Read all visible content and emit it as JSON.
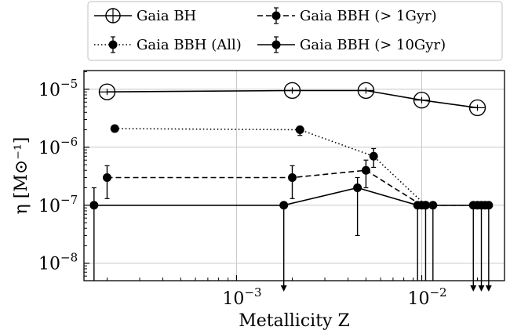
{
  "chart_data": {
    "type": "line",
    "xlabel": "Metallicity Z",
    "ylabel": "η [M⊙⁻¹]",
    "xscale": "log",
    "yscale": "log",
    "xlim": [
      0.00015,
      0.028
    ],
    "ylim": [
      5e-09,
      2.1e-05
    ],
    "x_ticks": [
      {
        "value": 0.001,
        "base": "10",
        "exp": "−3"
      },
      {
        "value": 0.01,
        "base": "10",
        "exp": "−2"
      }
    ],
    "y_ticks": [
      {
        "value": 1e-08,
        "base": "10",
        "exp": "−8"
      },
      {
        "value": 1e-07,
        "base": "10",
        "exp": "−7"
      },
      {
        "value": 1e-06,
        "base": "10",
        "exp": "−6"
      },
      {
        "value": 1e-05,
        "base": "10",
        "exp": "−5"
      }
    ],
    "grid": true,
    "legend_position": "top, above plot",
    "series": [
      {
        "name": "Gaia BH",
        "style": "solid",
        "marker": "open-circle",
        "points": [
          {
            "x": 0.0002,
            "y": 9e-06,
            "err_lo": 0,
            "err_hi": 0,
            "upper_limit": false
          },
          {
            "x": 0.002,
            "y": 9.5e-06,
            "err_lo": 0,
            "err_hi": 0,
            "upper_limit": false
          },
          {
            "x": 0.005,
            "y": 9.5e-06,
            "err_lo": 0,
            "err_hi": 0,
            "upper_limit": false
          },
          {
            "x": 0.01,
            "y": 6.5e-06,
            "err_lo": 0,
            "err_hi": 0,
            "upper_limit": false
          },
          {
            "x": 0.02,
            "y": 4.8e-06,
            "err_lo": 0,
            "err_hi": 0,
            "upper_limit": false
          }
        ]
      },
      {
        "name": "Gaia BBH (All)",
        "style": "dotted",
        "marker": "filled-circle",
        "points": [
          {
            "x": 0.00022,
            "y": 2.1e-06,
            "err_lo": 2e-07,
            "err_hi": 2e-07,
            "upper_limit": false
          },
          {
            "x": 0.0022,
            "y": 2e-06,
            "err_lo": 4e-07,
            "err_hi": 3e-07,
            "upper_limit": false
          },
          {
            "x": 0.0055,
            "y": 7e-07,
            "err_lo": 2.5e-07,
            "err_hi": 2.5e-07,
            "upper_limit": false
          },
          {
            "x": 0.0105,
            "y": 1e-07,
            "err_lo": 0,
            "err_hi": 0,
            "upper_limit": false
          },
          {
            "x": 0.022,
            "y": 1e-07,
            "err_lo": 0,
            "err_hi": 0,
            "upper_limit": false
          }
        ]
      },
      {
        "name": "Gaia BBH (> 1Gyr)",
        "style": "dashed",
        "marker": "filled-circle",
        "points": [
          {
            "x": 0.0002,
            "y": 3e-07,
            "err_lo": 1.7e-07,
            "err_hi": 1.8e-07,
            "upper_limit": false
          },
          {
            "x": 0.002,
            "y": 3e-07,
            "err_lo": 1.7e-07,
            "err_hi": 1.8e-07,
            "upper_limit": false
          },
          {
            "x": 0.005,
            "y": 4e-07,
            "err_lo": 2e-07,
            "err_hi": 2e-07,
            "upper_limit": false
          },
          {
            "x": 0.01,
            "y": 1e-07,
            "err_lo": 0,
            "err_hi": 0,
            "upper_limit": false
          },
          {
            "x": 0.02,
            "y": 1e-07,
            "err_lo": 0,
            "err_hi": 0,
            "upper_limit": false
          }
        ]
      },
      {
        "name": "Gaia BBH (> 10Gyr)",
        "style": "solid",
        "marker": "filled-circle",
        "points": [
          {
            "x": 0.00017,
            "y": 1e-07,
            "err_lo": 9.5e-09,
            "err_hi": 1e-07,
            "upper_limit": false,
            "err_to_bottom": true
          },
          {
            "x": 0.0018,
            "y": 1e-07,
            "err_lo": 0,
            "err_hi": 0,
            "upper_limit": true
          },
          {
            "x": 0.0045,
            "y": 2e-07,
            "err_lo": 1.7e-07,
            "err_hi": 1e-07,
            "upper_limit": false
          },
          {
            "x": 0.0095,
            "y": 1e-07,
            "err_lo": 0,
            "err_hi": 1e-08,
            "upper_limit": false,
            "err_to_bottom": true
          },
          {
            "x": 0.0105,
            "y": 1e-07,
            "err_lo": 0,
            "err_hi": 1e-08,
            "upper_limit": false,
            "err_to_bottom": true
          },
          {
            "x": 0.0115,
            "y": 1e-07,
            "err_lo": 0,
            "err_hi": 1e-08,
            "upper_limit": false,
            "err_to_bottom": true
          },
          {
            "x": 0.019,
            "y": 1e-07,
            "err_lo": 0,
            "err_hi": 0,
            "upper_limit": true
          },
          {
            "x": 0.021,
            "y": 1e-07,
            "err_lo": 0,
            "err_hi": 0,
            "upper_limit": true
          },
          {
            "x": 0.023,
            "y": 1e-07,
            "err_lo": 0,
            "err_hi": 0,
            "upper_limit": true
          }
        ]
      }
    ]
  }
}
